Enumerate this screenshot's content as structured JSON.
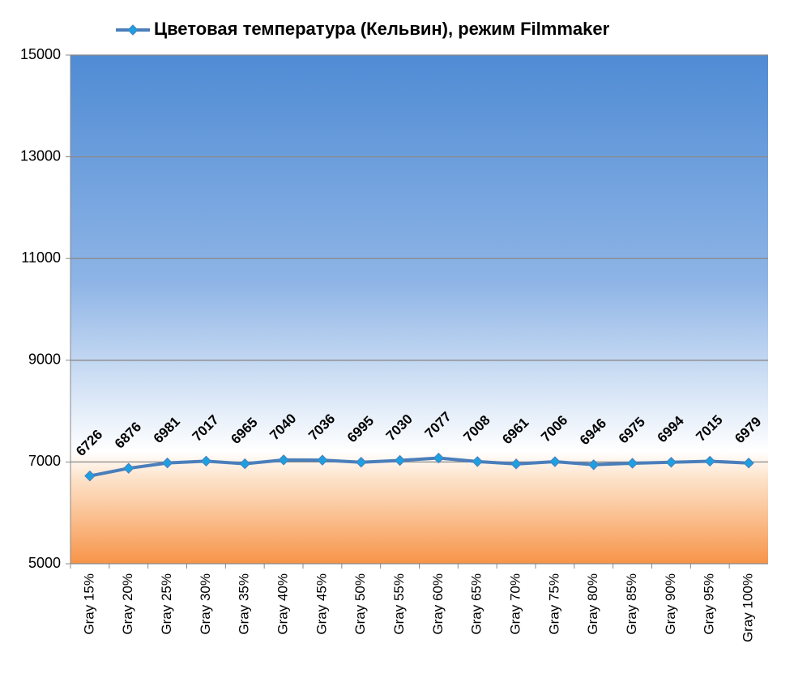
{
  "chart_data": {
    "type": "line",
    "categories": [
      "Gray 15%",
      "Gray 20%",
      "Gray 25%",
      "Gray 30%",
      "Gray 35%",
      "Gray 40%",
      "Gray 45%",
      "Gray 50%",
      "Gray 55%",
      "Gray 60%",
      "Gray 65%",
      "Gray 70%",
      "Gray 75%",
      "Gray 80%",
      "Gray 85%",
      "Gray 90%",
      "Gray 95%",
      "Gray 100%"
    ],
    "series": [
      {
        "name": "Цветовая температура (Кельвин), режим Filmmaker",
        "color": "#4a7ebb",
        "marker_color": "#1ea0e0",
        "values": [
          6726,
          6876,
          6981,
          7017,
          6965,
          7040,
          7036,
          6995,
          7030,
          7077,
          7008,
          6961,
          7006,
          6946,
          6975,
          6994,
          7015,
          6979
        ]
      }
    ],
    "ylim": [
      5000,
      15000
    ],
    "yticks": [
      5000,
      7000,
      9000,
      11000,
      13000,
      15000
    ],
    "grid": true,
    "legend": "top",
    "data_labels": true
  }
}
